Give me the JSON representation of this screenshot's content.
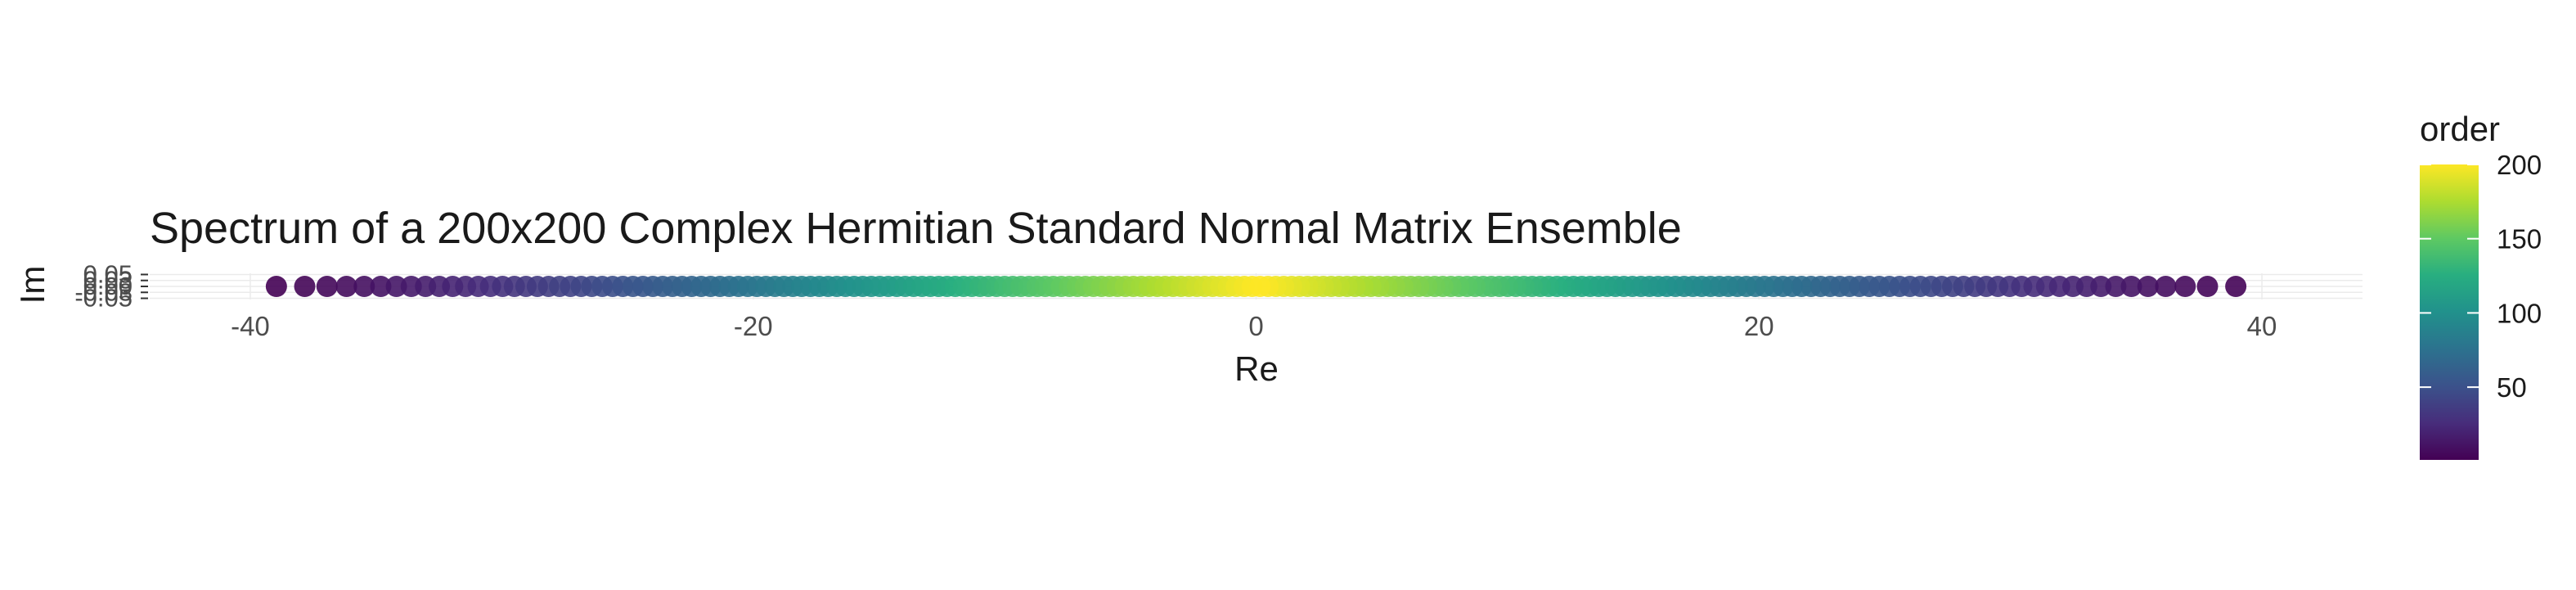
{
  "chart_data": {
    "type": "scatter",
    "title": "Spectrum of a 200x200 Complex Hermitian Standard Normal Matrix Ensemble",
    "xlabel": "Re",
    "ylabel": "Im",
    "xlim": [
      -44,
      44
    ],
    "ylim": [
      -0.055,
      0.055
    ],
    "x_ticks": [
      -40,
      -20,
      0,
      20,
      40
    ],
    "x_tick_labels": [
      "-40",
      "-20",
      "0",
      "20",
      "40"
    ],
    "y_ticks": [
      -0.05,
      -0.025,
      0,
      0.025,
      0.05
    ],
    "y_tick_labels": [
      "-0.05",
      "-0.03",
      "0.00",
      "0.03",
      "0.05"
    ],
    "grid": true,
    "point_count": 200,
    "x_range_of_points": [
      -40,
      40
    ],
    "imaginary_part": 0,
    "color_variable": "order",
    "color_scale": "viridis",
    "legend": {
      "title": "order",
      "position": "right",
      "range": [
        1,
        200
      ],
      "breaks": [
        50,
        100,
        150,
        200
      ],
      "break_labels": [
        "50",
        "100",
        "150",
        "200"
      ]
    }
  }
}
